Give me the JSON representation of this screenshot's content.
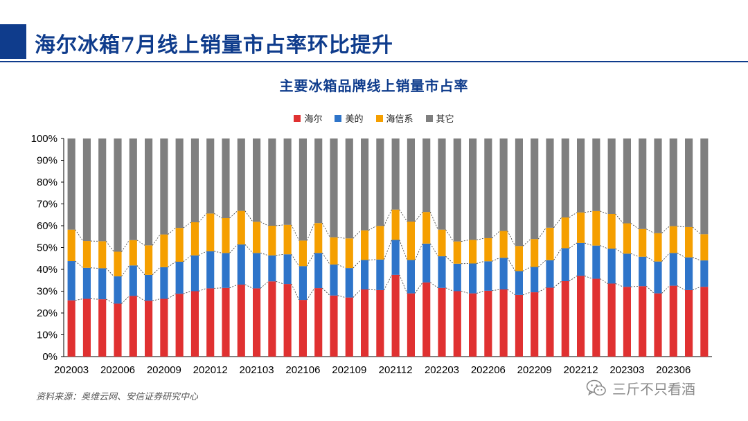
{
  "header": {
    "title": "海尔冰箱7月线上销量市占率环比提升",
    "accent_color": "#0f3c8c"
  },
  "chart_title": "主要冰箱品牌线上销量市占率",
  "source": "资料来源：奥维云网、安信证券研究中心",
  "watermark": {
    "text": "三斤不只看酒",
    "icon": "wechat-icon"
  },
  "chart_data": {
    "type": "bar",
    "stacked": true,
    "title": "主要冰箱品牌线上销量市占率",
    "xlabel": "",
    "ylabel": "",
    "ylim": [
      0,
      100
    ],
    "y_ticks": [
      "0%",
      "10%",
      "20%",
      "30%",
      "40%",
      "50%",
      "60%",
      "70%",
      "80%",
      "90%",
      "100%"
    ],
    "grid": false,
    "legend_position": "top-center",
    "dashed_connectors": true,
    "categories": [
      "202003",
      "202004",
      "202005",
      "202006",
      "202007",
      "202008",
      "202009",
      "202010",
      "202011",
      "202012",
      "202101",
      "202102",
      "202103",
      "202104",
      "202105",
      "202106",
      "202107",
      "202108",
      "202109",
      "202110",
      "202111",
      "202112",
      "202201",
      "202202",
      "202203",
      "202204",
      "202205",
      "202206",
      "202207",
      "202208",
      "202209",
      "202210",
      "202211",
      "202212",
      "202301",
      "202302",
      "202303",
      "202304",
      "202305",
      "202306",
      "202307",
      "202308"
    ],
    "x_tick_labels": [
      "202003",
      "202006",
      "202009",
      "202012",
      "202103",
      "202106",
      "202109",
      "202112",
      "202203",
      "202206",
      "202209",
      "202212",
      "202303",
      "202306"
    ],
    "series": [
      {
        "name": "海尔",
        "color": "#e03131",
        "values": [
          25.8,
          26.5,
          26.3,
          24.3,
          27.8,
          25.6,
          26.5,
          28.8,
          30.0,
          31.3,
          31.5,
          33.0,
          31.3,
          34.5,
          33.3,
          26.0,
          31.4,
          28.0,
          27.1,
          30.8,
          30.5,
          37.5,
          29.0,
          34.0,
          31.5,
          30.0,
          29.0,
          30.2,
          30.8,
          28.3,
          29.5,
          31.6,
          34.6,
          37.0,
          35.7,
          33.5,
          32.0,
          32.3,
          29.0,
          32.5,
          30.5,
          32.0
        ]
      },
      {
        "name": "美的",
        "color": "#2e74c9",
        "values": [
          18.0,
          14.2,
          14.2,
          12.5,
          14.0,
          11.9,
          14.5,
          14.7,
          16.4,
          17.0,
          16.0,
          18.4,
          16.2,
          11.9,
          13.6,
          15.5,
          16.1,
          14.2,
          13.5,
          13.5,
          14.0,
          16.0,
          15.3,
          17.8,
          14.5,
          12.6,
          13.7,
          13.5,
          14.5,
          10.9,
          11.6,
          12.6,
          15.1,
          15.1,
          15.2,
          16.0,
          15.2,
          13.5,
          14.6,
          15.0,
          15.0,
          12.1
        ]
      },
      {
        "name": "海信系",
        "color": "#f59f00",
        "values": [
          14.4,
          12.3,
          12.4,
          11.3,
          11.6,
          13.5,
          15.0,
          15.5,
          15.2,
          17.3,
          16.0,
          15.4,
          14.3,
          13.6,
          13.5,
          11.7,
          13.7,
          12.5,
          13.6,
          13.6,
          15.4,
          13.9,
          17.6,
          14.5,
          12.2,
          10.2,
          10.8,
          10.6,
          12.3,
          11.5,
          12.8,
          14.9,
          14.1,
          14.0,
          15.8,
          15.9,
          13.9,
          12.7,
          13.0,
          12.3,
          13.9,
          12.0
        ]
      },
      {
        "name": "其它",
        "color": "#7f7f7f",
        "values": [
          41.8,
          47.0,
          47.1,
          51.9,
          46.6,
          49.0,
          44.0,
          41.0,
          38.4,
          34.4,
          36.5,
          33.2,
          38.2,
          40.0,
          39.6,
          46.8,
          38.8,
          45.3,
          45.8,
          42.1,
          40.1,
          32.6,
          38.1,
          33.7,
          41.8,
          47.2,
          46.5,
          45.7,
          42.4,
          49.3,
          46.1,
          40.9,
          36.2,
          33.9,
          33.3,
          34.6,
          38.9,
          41.5,
          43.4,
          40.2,
          40.6,
          43.9
        ]
      }
    ]
  }
}
